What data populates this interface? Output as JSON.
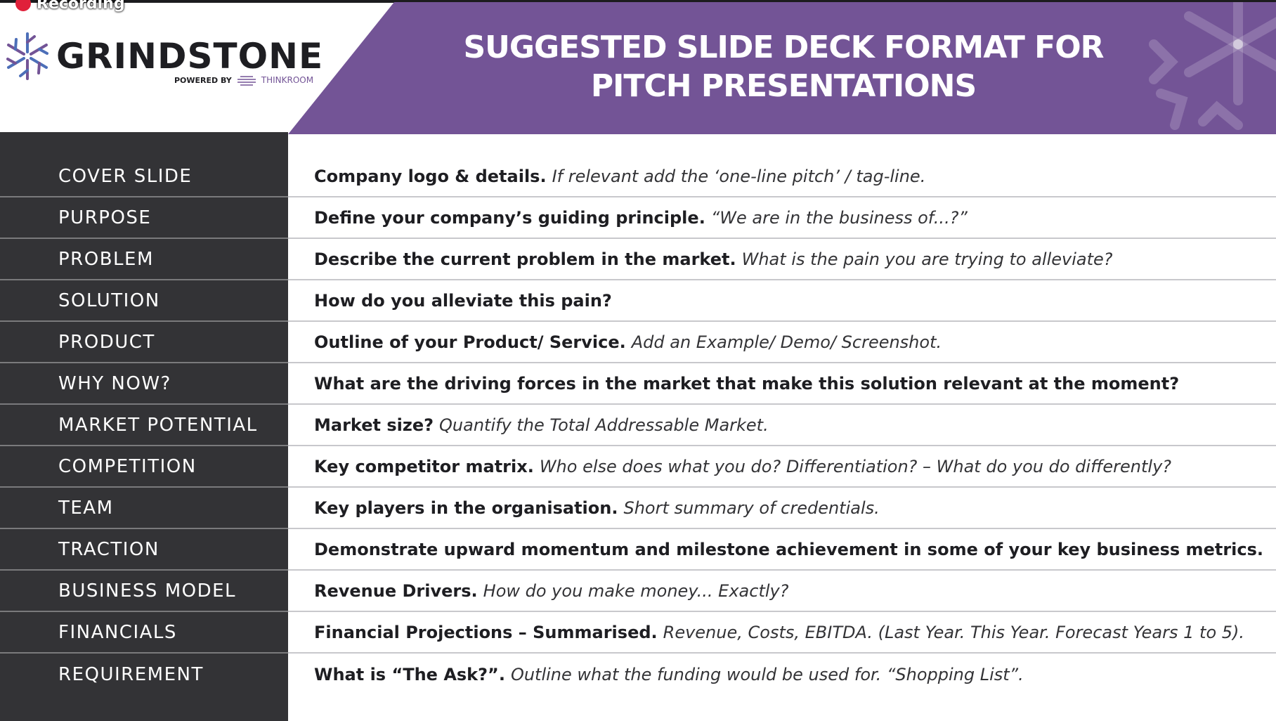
{
  "recording": {
    "label": "Recording"
  },
  "brand": {
    "name": "GRINDSTONE",
    "powered_by": "POWERED BY",
    "partner": "THINKROOM"
  },
  "header": {
    "title_line1": "SUGGESTED SLIDE DECK FORMAT FOR",
    "title_line2": "PITCH PRESENTATIONS"
  },
  "colors": {
    "purple": "#735496",
    "dark": "#333336",
    "record": "#e0203a"
  },
  "rows": [
    {
      "label": "COVER SLIDE",
      "bold": "Company logo & details.",
      "italic": "If relevant add the ‘one-line pitch’ / tag-line."
    },
    {
      "label": "PURPOSE",
      "bold": "Define your company’s guiding principle.",
      "italic": "“We are in the business of...?”"
    },
    {
      "label": "PROBLEM",
      "bold": "Describe the current problem in the market.",
      "italic": "What is the pain you are trying to alleviate?"
    },
    {
      "label": "SOLUTION",
      "bold": "How do you alleviate this pain?",
      "italic": ""
    },
    {
      "label": "PRODUCT",
      "bold": "Outline of your Product/ Service.",
      "italic": "Add an Example/ Demo/ Screenshot."
    },
    {
      "label": "WHY NOW?",
      "bold": "What are the driving forces in the market that make this solution relevant at the moment?",
      "italic": ""
    },
    {
      "label": "MARKET POTENTIAL",
      "bold": "Market size?",
      "italic": "Quantify the Total Addressable Market."
    },
    {
      "label": "COMPETITION",
      "bold": "Key competitor matrix.",
      "italic": "Who else does what you do? Differentiation? – What do you do differently?"
    },
    {
      "label": "TEAM",
      "bold": "Key players in the organisation.",
      "italic": "Short summary of credentials."
    },
    {
      "label": "TRACTION",
      "bold": "Demonstrate upward momentum and milestone achievement in some of your key business metrics.",
      "italic": ""
    },
    {
      "label": "BUSINESS MODEL",
      "bold": "Revenue Drivers.",
      "italic": "How do you make money... Exactly?"
    },
    {
      "label": "FINANCIALS",
      "bold": "Financial Projections – Summarised.",
      "italic": "Revenue, Costs, EBITDA. (Last Year. This Year. Forecast Years 1 to 5)."
    },
    {
      "label": "REQUIREMENT",
      "bold": "What is “The Ask?”.",
      "italic": "Outline what the funding would be used for. “Shopping List”."
    }
  ]
}
